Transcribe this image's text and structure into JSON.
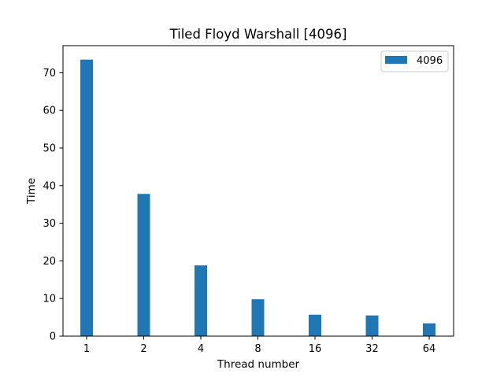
{
  "chart_data": {
    "type": "bar",
    "title": "Tiled Floyd Warshall [4096]",
    "xlabel": "Thread number",
    "ylabel": "Time",
    "categories": [
      "1",
      "2",
      "4",
      "8",
      "16",
      "32",
      "64"
    ],
    "series": [
      {
        "name": "4096",
        "values": [
          73.5,
          37.8,
          18.8,
          9.8,
          5.7,
          5.5,
          3.4
        ],
        "color": "#1f77b4"
      }
    ],
    "ylim": [
      0,
      77.2
    ],
    "yticks": [
      0,
      10,
      20,
      30,
      40,
      50,
      60,
      70
    ],
    "grid": false,
    "legend_position": "upper right"
  }
}
